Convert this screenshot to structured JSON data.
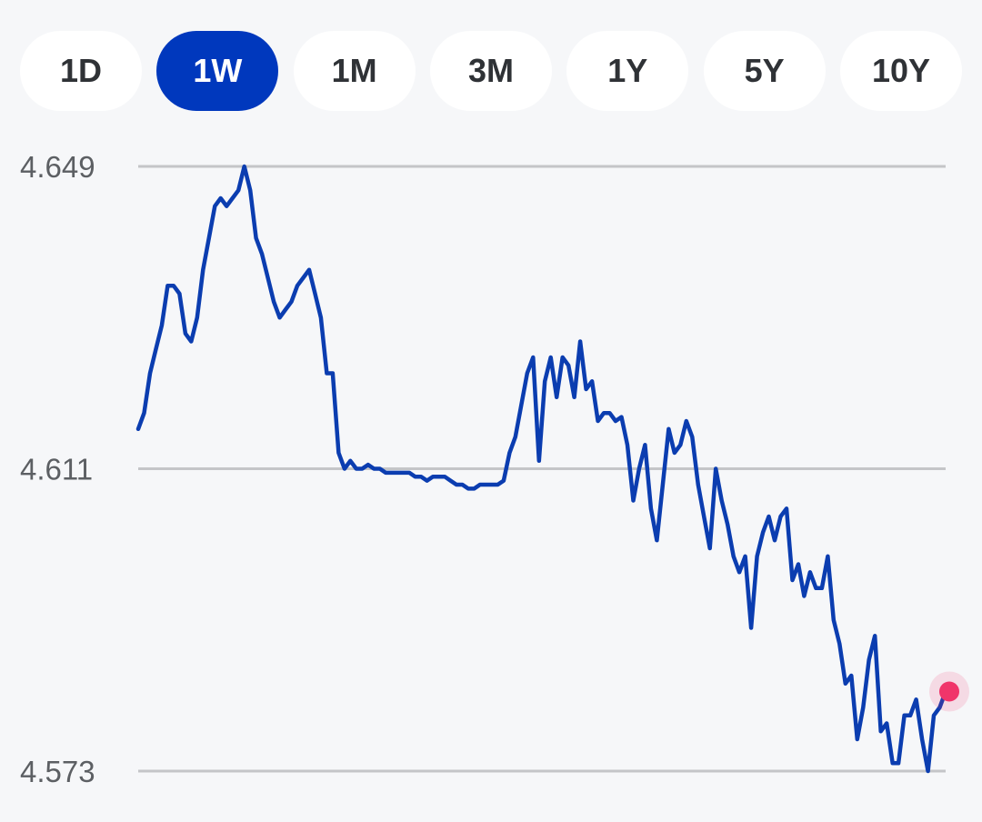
{
  "range_selector": {
    "tabs": [
      {
        "label": "1D",
        "active": false
      },
      {
        "label": "1W",
        "active": true
      },
      {
        "label": "1M",
        "active": false
      },
      {
        "label": "3M",
        "active": false
      },
      {
        "label": "1Y",
        "active": false
      },
      {
        "label": "5Y",
        "active": false
      },
      {
        "label": "10Y",
        "active": false
      }
    ]
  },
  "colors": {
    "line": "#0b3db0",
    "active_tab": "#0038bd",
    "marker": "#f0356a",
    "gridline": "#c4c5c8"
  },
  "chart_data": {
    "type": "line",
    "y_ticks": [
      "4.649",
      "4.611",
      "4.573"
    ],
    "ylim": [
      4.573,
      4.649
    ],
    "grid": true,
    "legend": "none",
    "series": [
      {
        "end_marker": true,
        "values": [
          4.616,
          4.618,
          4.623,
          4.626,
          4.629,
          4.634,
          4.634,
          4.633,
          4.628,
          4.627,
          4.63,
          4.636,
          4.64,
          4.644,
          4.645,
          4.644,
          4.645,
          4.646,
          4.649,
          4.646,
          4.64,
          4.638,
          4.635,
          4.632,
          4.63,
          4.631,
          4.632,
          4.634,
          4.635,
          4.636,
          4.633,
          4.63,
          4.623,
          4.623,
          4.613,
          4.611,
          4.612,
          4.611,
          4.611,
          4.6115,
          4.611,
          4.611,
          4.6105,
          4.6105,
          4.6105,
          4.6105,
          4.6105,
          4.61,
          4.61,
          4.6095,
          4.61,
          4.61,
          4.61,
          4.6095,
          4.609,
          4.609,
          4.6085,
          4.6085,
          4.609,
          4.609,
          4.609,
          4.609,
          4.6095,
          4.613,
          4.615,
          4.619,
          4.623,
          4.625,
          4.612,
          4.622,
          4.625,
          4.62,
          4.625,
          4.624,
          4.62,
          4.627,
          4.621,
          4.622,
          4.617,
          4.618,
          4.618,
          4.617,
          4.6175,
          4.614,
          4.607,
          4.611,
          4.614,
          4.606,
          4.602,
          4.609,
          4.616,
          4.613,
          4.614,
          4.617,
          4.615,
          4.609,
          4.605,
          4.601,
          4.611,
          4.607,
          4.604,
          4.6,
          4.598,
          4.6,
          4.591,
          4.6,
          4.603,
          4.605,
          4.602,
          4.605,
          4.606,
          4.597,
          4.599,
          4.595,
          4.598,
          4.596,
          4.596,
          4.6,
          4.592,
          4.589,
          4.584,
          4.585,
          4.577,
          4.581,
          4.587,
          4.59,
          4.578,
          4.579,
          4.574,
          4.574,
          4.58,
          4.58,
          4.582,
          4.577,
          4.573,
          4.58,
          4.581,
          4.583
        ]
      }
    ]
  }
}
